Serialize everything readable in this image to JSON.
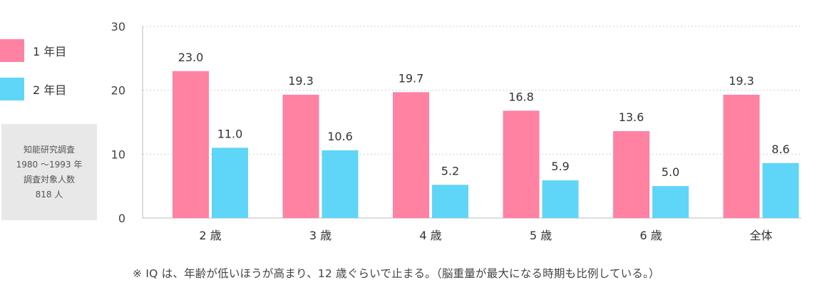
{
  "legend": {
    "items": [
      {
        "label": "1 年目",
        "color": "#ff82a3"
      },
      {
        "label": "2 年目",
        "color": "#5fd5f8"
      }
    ]
  },
  "info_box": {
    "lines": [
      "知能研究調査",
      "1980 〜1993 年",
      "調査対象人数",
      "818 人"
    ]
  },
  "chart_data": {
    "type": "bar",
    "categories": [
      "2 歳",
      "3 歳",
      "4 歳",
      "5 歳",
      "6 歳",
      "全体"
    ],
    "series": [
      {
        "name": "1 年目",
        "color": "#ff82a3",
        "values": [
          23.0,
          19.3,
          19.7,
          16.8,
          13.6,
          19.3
        ],
        "labels": [
          "23.0",
          "19.3",
          "19.7",
          "16.8",
          "13.6",
          "19.3"
        ]
      },
      {
        "name": "2 年目",
        "color": "#5fd5f8",
        "values": [
          11.0,
          10.6,
          5.2,
          5.9,
          5.0,
          8.6
        ],
        "labels": [
          "11.0",
          "10.6",
          "5.2",
          "5.9",
          "5.0",
          "8.6"
        ]
      }
    ],
    "ylim": [
      0,
      30
    ],
    "yticks": [
      0,
      10,
      20,
      30
    ],
    "ytick_labels": [
      "0",
      "10",
      "20",
      "30"
    ],
    "grid": true,
    "legend_position": "left"
  },
  "footnote": "※ IQ は、年齢が低いほうが高まり、12 歳ぐらいで止まる。（脳重量が最大になる時期も比例している。）"
}
